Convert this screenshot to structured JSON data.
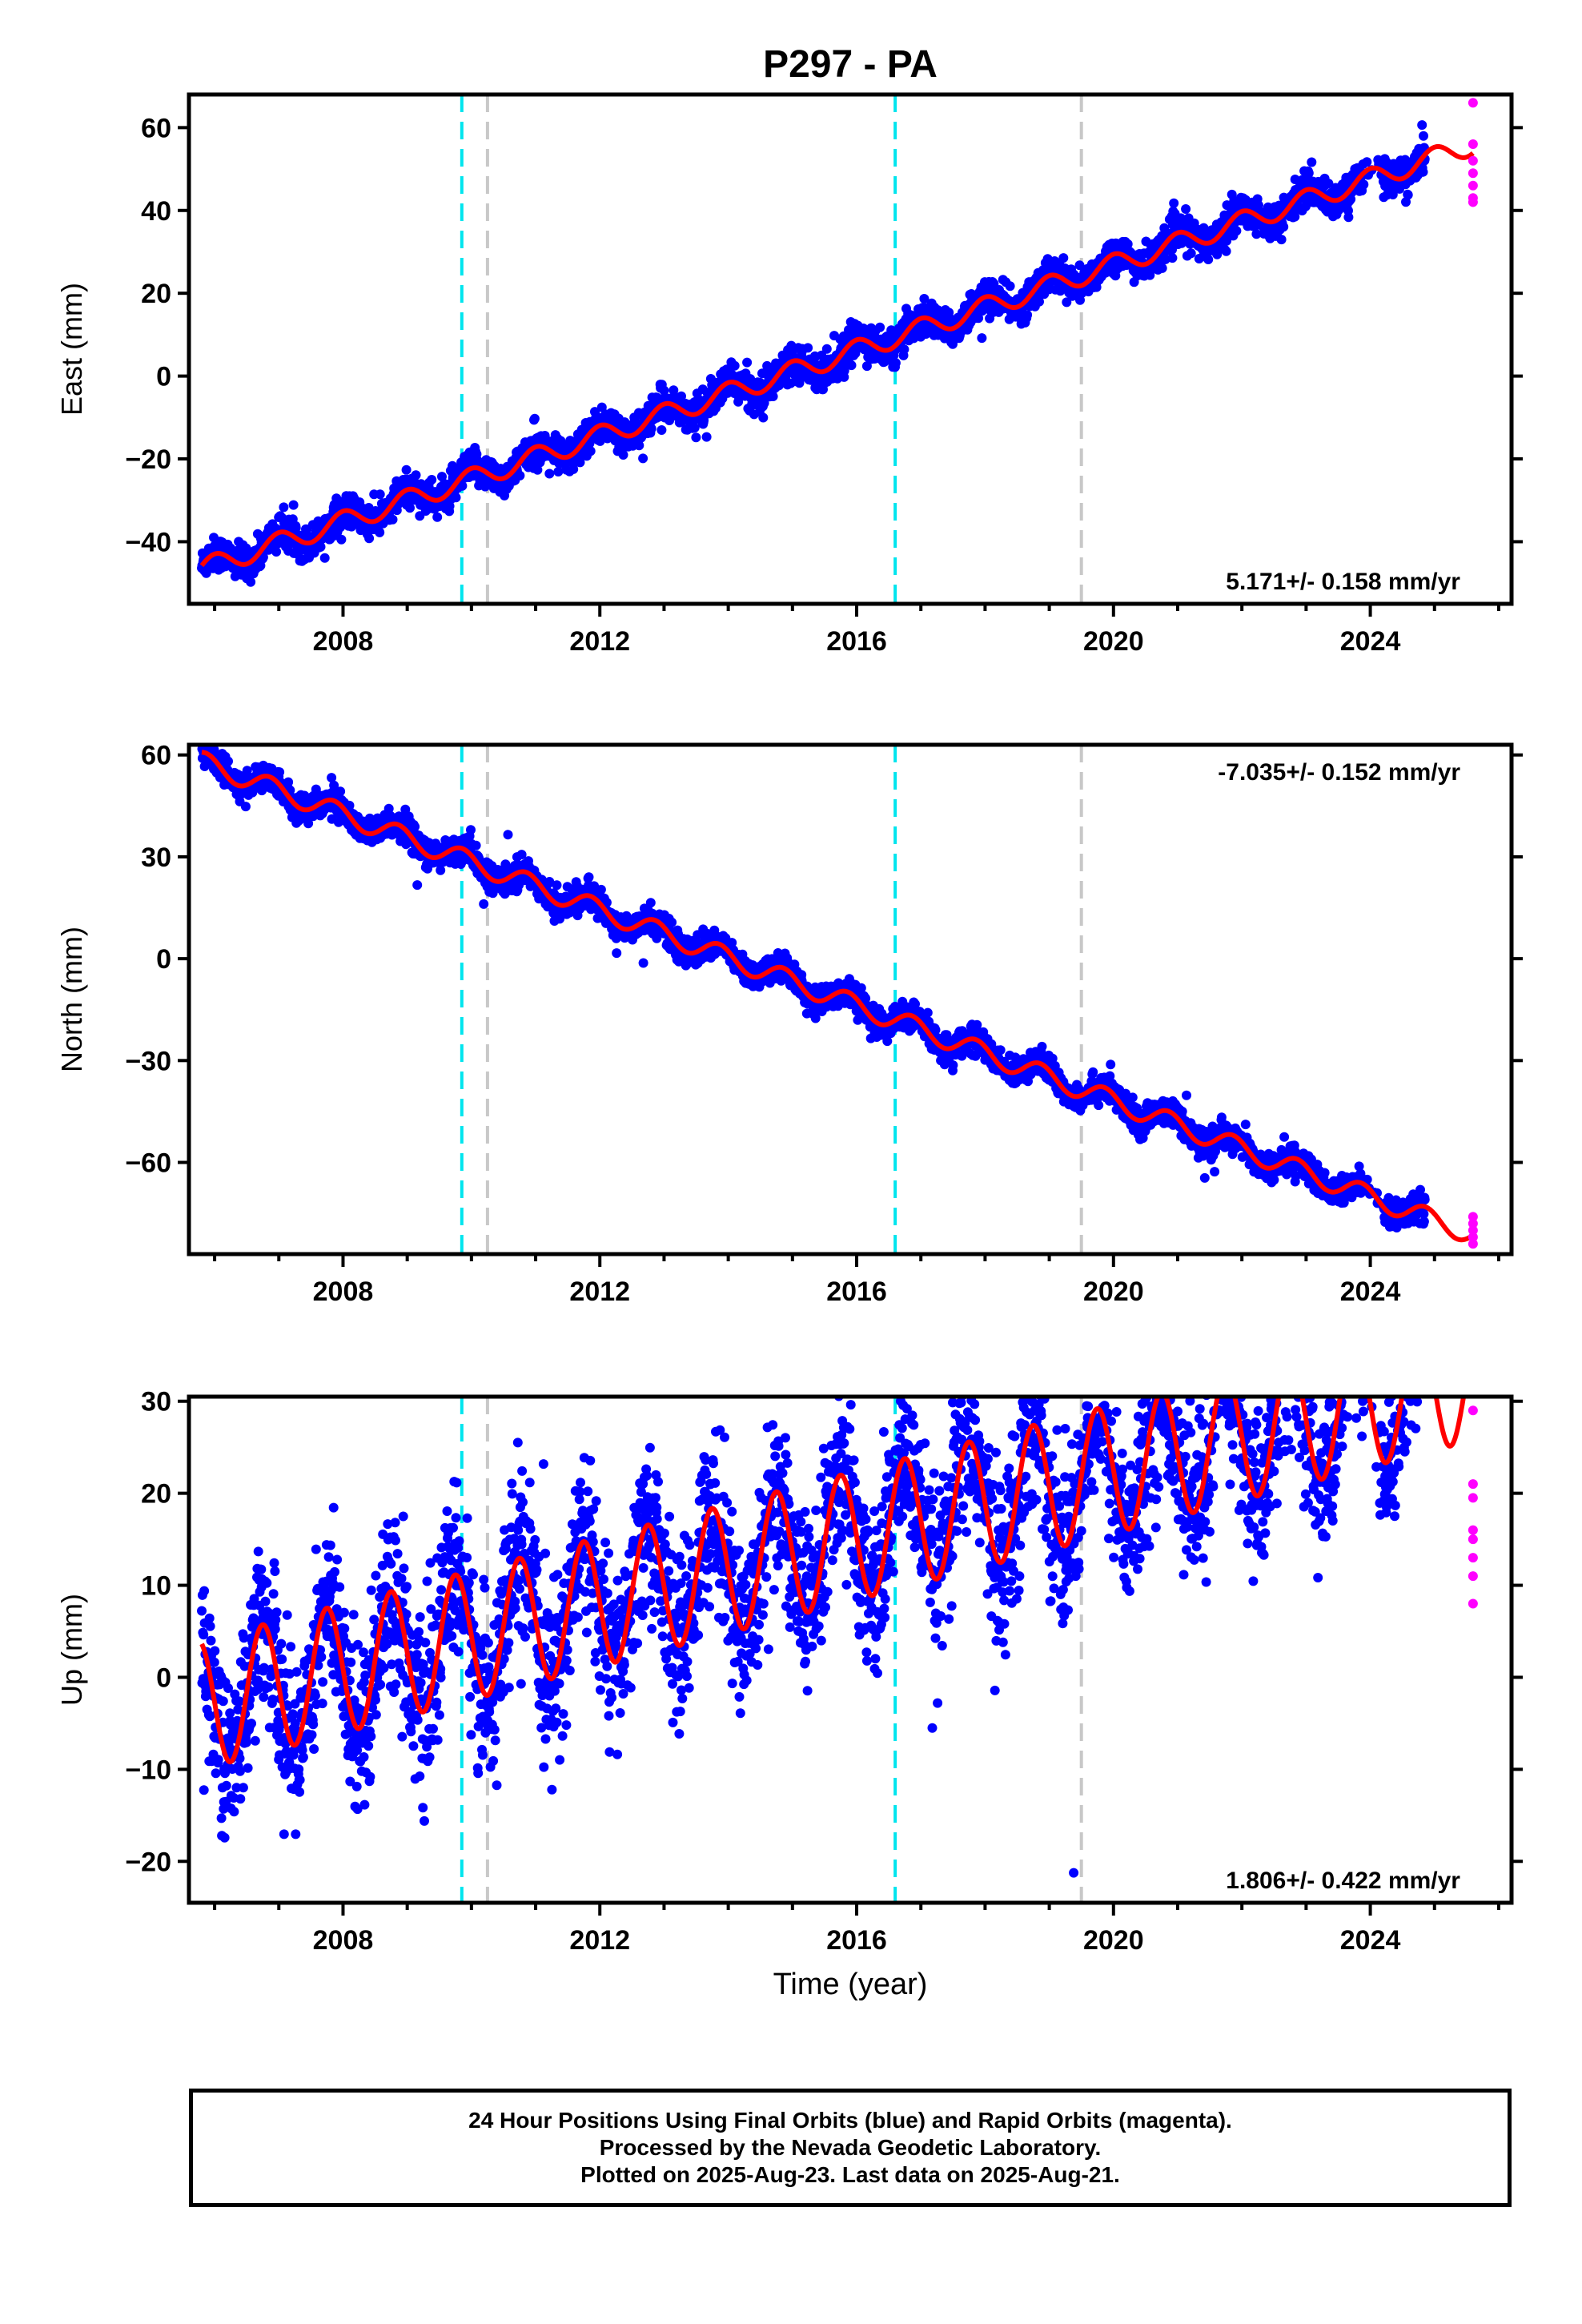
{
  "title": "P297 - PA",
  "colors": {
    "final": "#0000ff",
    "rapid": "#ff00ff",
    "model": "#ff0000",
    "equipment": "#00e5ee",
    "event": "#c8c8c8"
  },
  "xlabel": "Time (year)",
  "footer": {
    "line1": "24 Hour Positions Using Final Orbits (blue) and Rapid Orbits (magenta).",
    "line2": "Processed by the Nevada Geodetic Laboratory.",
    "line3": "Plotted on 2025-Aug-23. Last data on 2025-Aug-21."
  },
  "chart_data": [
    {
      "type": "scatter",
      "ylabel": "East (mm)",
      "ylim": [
        -55,
        68
      ],
      "xlim": [
        2005.6,
        2026.2
      ],
      "xticks": [
        2008,
        2012,
        2016,
        2020,
        2024
      ],
      "xtick_labels": [
        "2008",
        "2012",
        "2016",
        "2020",
        "2024"
      ],
      "yticks": [
        -40,
        -20,
        0,
        20,
        40,
        60
      ],
      "ytick_labels": [
        "−40",
        "−20",
        "0",
        "20",
        "40",
        "60"
      ],
      "rate_label": "5.171+/- 0.158 mm/yr",
      "rate_position": "bottom-right",
      "trend": {
        "ref_year": 2005.8,
        "ref_value": -46.5,
        "rate": 5.171,
        "annual_amp": 2.5,
        "annual_phase": 0.3
      },
      "noise": 2.0,
      "data_end": 2024.85,
      "model_end": 2025.6,
      "equipment_changes": [
        2009.85,
        2016.6
      ],
      "events": [
        2010.25,
        2019.5
      ],
      "rapid_points": [
        {
          "x": 2025.6,
          "y": 66
        },
        {
          "x": 2025.6,
          "y": 56
        },
        {
          "x": 2025.6,
          "y": 52
        },
        {
          "x": 2025.6,
          "y": 49
        },
        {
          "x": 2025.6,
          "y": 46
        },
        {
          "x": 2025.6,
          "y": 43
        },
        {
          "x": 2025.6,
          "y": 42
        }
      ]
    },
    {
      "type": "scatter",
      "ylabel": "North (mm)",
      "ylim": [
        -87,
        63
      ],
      "xlim": [
        2005.6,
        2026.2
      ],
      "xticks": [
        2008,
        2012,
        2016,
        2020,
        2024
      ],
      "xtick_labels": [
        "2008",
        "2012",
        "2016",
        "2020",
        "2024"
      ],
      "yticks": [
        -60,
        -30,
        0,
        30,
        60
      ],
      "ytick_labels": [
        "−60",
        "−30",
        "0",
        "30",
        "60"
      ],
      "rate_label": "-7.035+/- 0.152 mm/yr",
      "rate_position": "top-right",
      "trend": {
        "ref_year": 2005.8,
        "ref_value": 58,
        "rate": -7.035,
        "annual_amp": 3.0,
        "annual_phase": 1.2
      },
      "noise": 2.0,
      "data_end": 2024.85,
      "model_end": 2025.6,
      "equipment_changes": [
        2009.85,
        2016.6
      ],
      "events": [
        2010.25,
        2019.5
      ],
      "rapid_points": [
        {
          "x": 2025.6,
          "y": -76
        },
        {
          "x": 2025.6,
          "y": -78
        },
        {
          "x": 2025.6,
          "y": -80
        },
        {
          "x": 2025.6,
          "y": -82
        },
        {
          "x": 2025.6,
          "y": -84
        }
      ]
    },
    {
      "type": "scatter",
      "ylabel": "Up (mm)",
      "ylim": [
        -24.5,
        30.5
      ],
      "xlim": [
        2005.6,
        2026.2
      ],
      "xticks": [
        2008,
        2012,
        2016,
        2020,
        2024
      ],
      "xtick_labels": [
        "2008",
        "2012",
        "2016",
        "2020",
        "2024"
      ],
      "yticks": [
        -20,
        -10,
        0,
        10,
        20,
        30
      ],
      "ytick_labels": [
        "−20",
        "−10",
        "0",
        "10",
        "20",
        "30"
      ],
      "rate_label": "1.806+/- 0.422 mm/yr",
      "rate_position": "bottom-right",
      "trend": {
        "ref_year": 2005.8,
        "ref_value": -3.0,
        "rate": 1.806,
        "annual_amp": 7.0,
        "annual_phase": 1.9
      },
      "noise": 4.5,
      "data_end": 2024.85,
      "model_end": 2025.6,
      "equipment_changes": [
        2009.85,
        2016.6
      ],
      "events": [
        2010.25,
        2019.5
      ],
      "rapid_points": [
        {
          "x": 2025.6,
          "y": 29
        },
        {
          "x": 2025.6,
          "y": 21
        },
        {
          "x": 2025.6,
          "y": 19.5
        },
        {
          "x": 2025.6,
          "y": 16
        },
        {
          "x": 2025.6,
          "y": 15
        },
        {
          "x": 2025.6,
          "y": 13
        },
        {
          "x": 2025.6,
          "y": 11
        },
        {
          "x": 2025.6,
          "y": 8
        }
      ]
    }
  ]
}
